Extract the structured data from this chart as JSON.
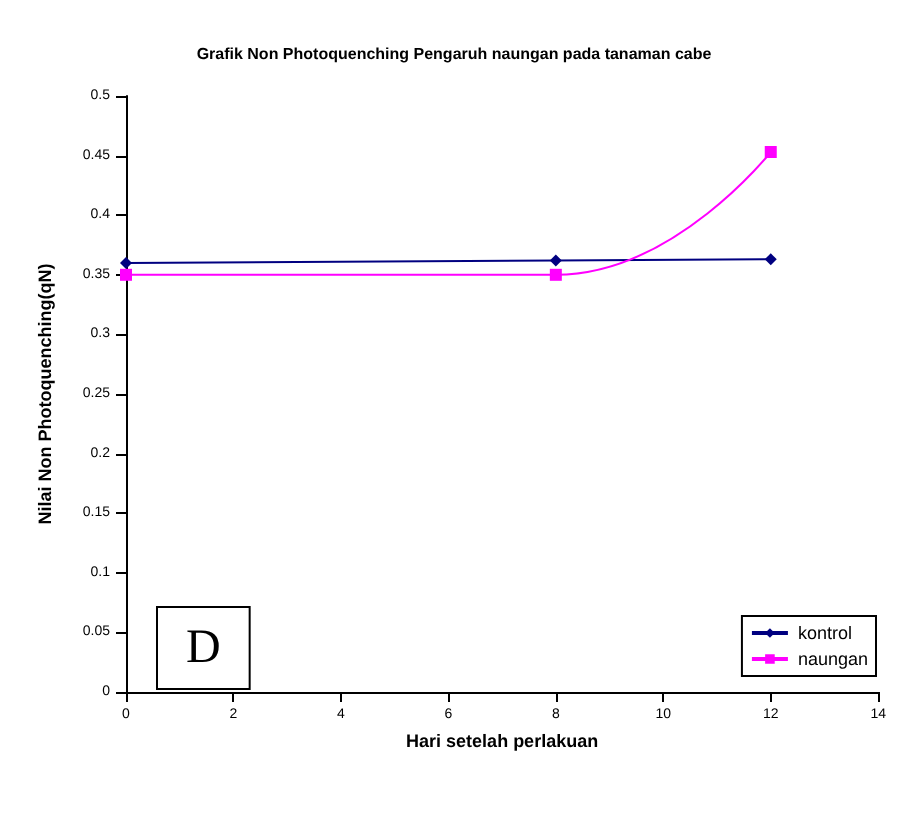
{
  "chart_data": {
    "type": "line",
    "title": "Grafik Non Photoquenching Pengaruh naungan pada tanaman cabe",
    "xlabel": "Hari setelah perlakuan",
    "ylabel": "Nilai Non Photoquenching(qN)",
    "x": [
      0,
      8,
      12
    ],
    "series": [
      {
        "name": "kontrol",
        "color": "#000080",
        "marker": "diamond",
        "values": [
          0.36,
          0.362,
          0.363
        ]
      },
      {
        "name": "naungan",
        "color": "#ff00ff",
        "marker": "square",
        "values": [
          0.35,
          0.35,
          0.453
        ]
      }
    ],
    "xlim": [
      0,
      14
    ],
    "xticks": [
      0,
      2,
      4,
      6,
      8,
      10,
      12,
      14
    ],
    "ylim": [
      0,
      0.5
    ],
    "yticks": [
      0,
      0.05,
      0.1,
      0.15,
      0.2,
      0.25,
      0.3,
      0.35,
      0.4,
      0.45,
      0.5
    ],
    "grid": false,
    "legend": "right",
    "annotations": [
      "D"
    ]
  }
}
